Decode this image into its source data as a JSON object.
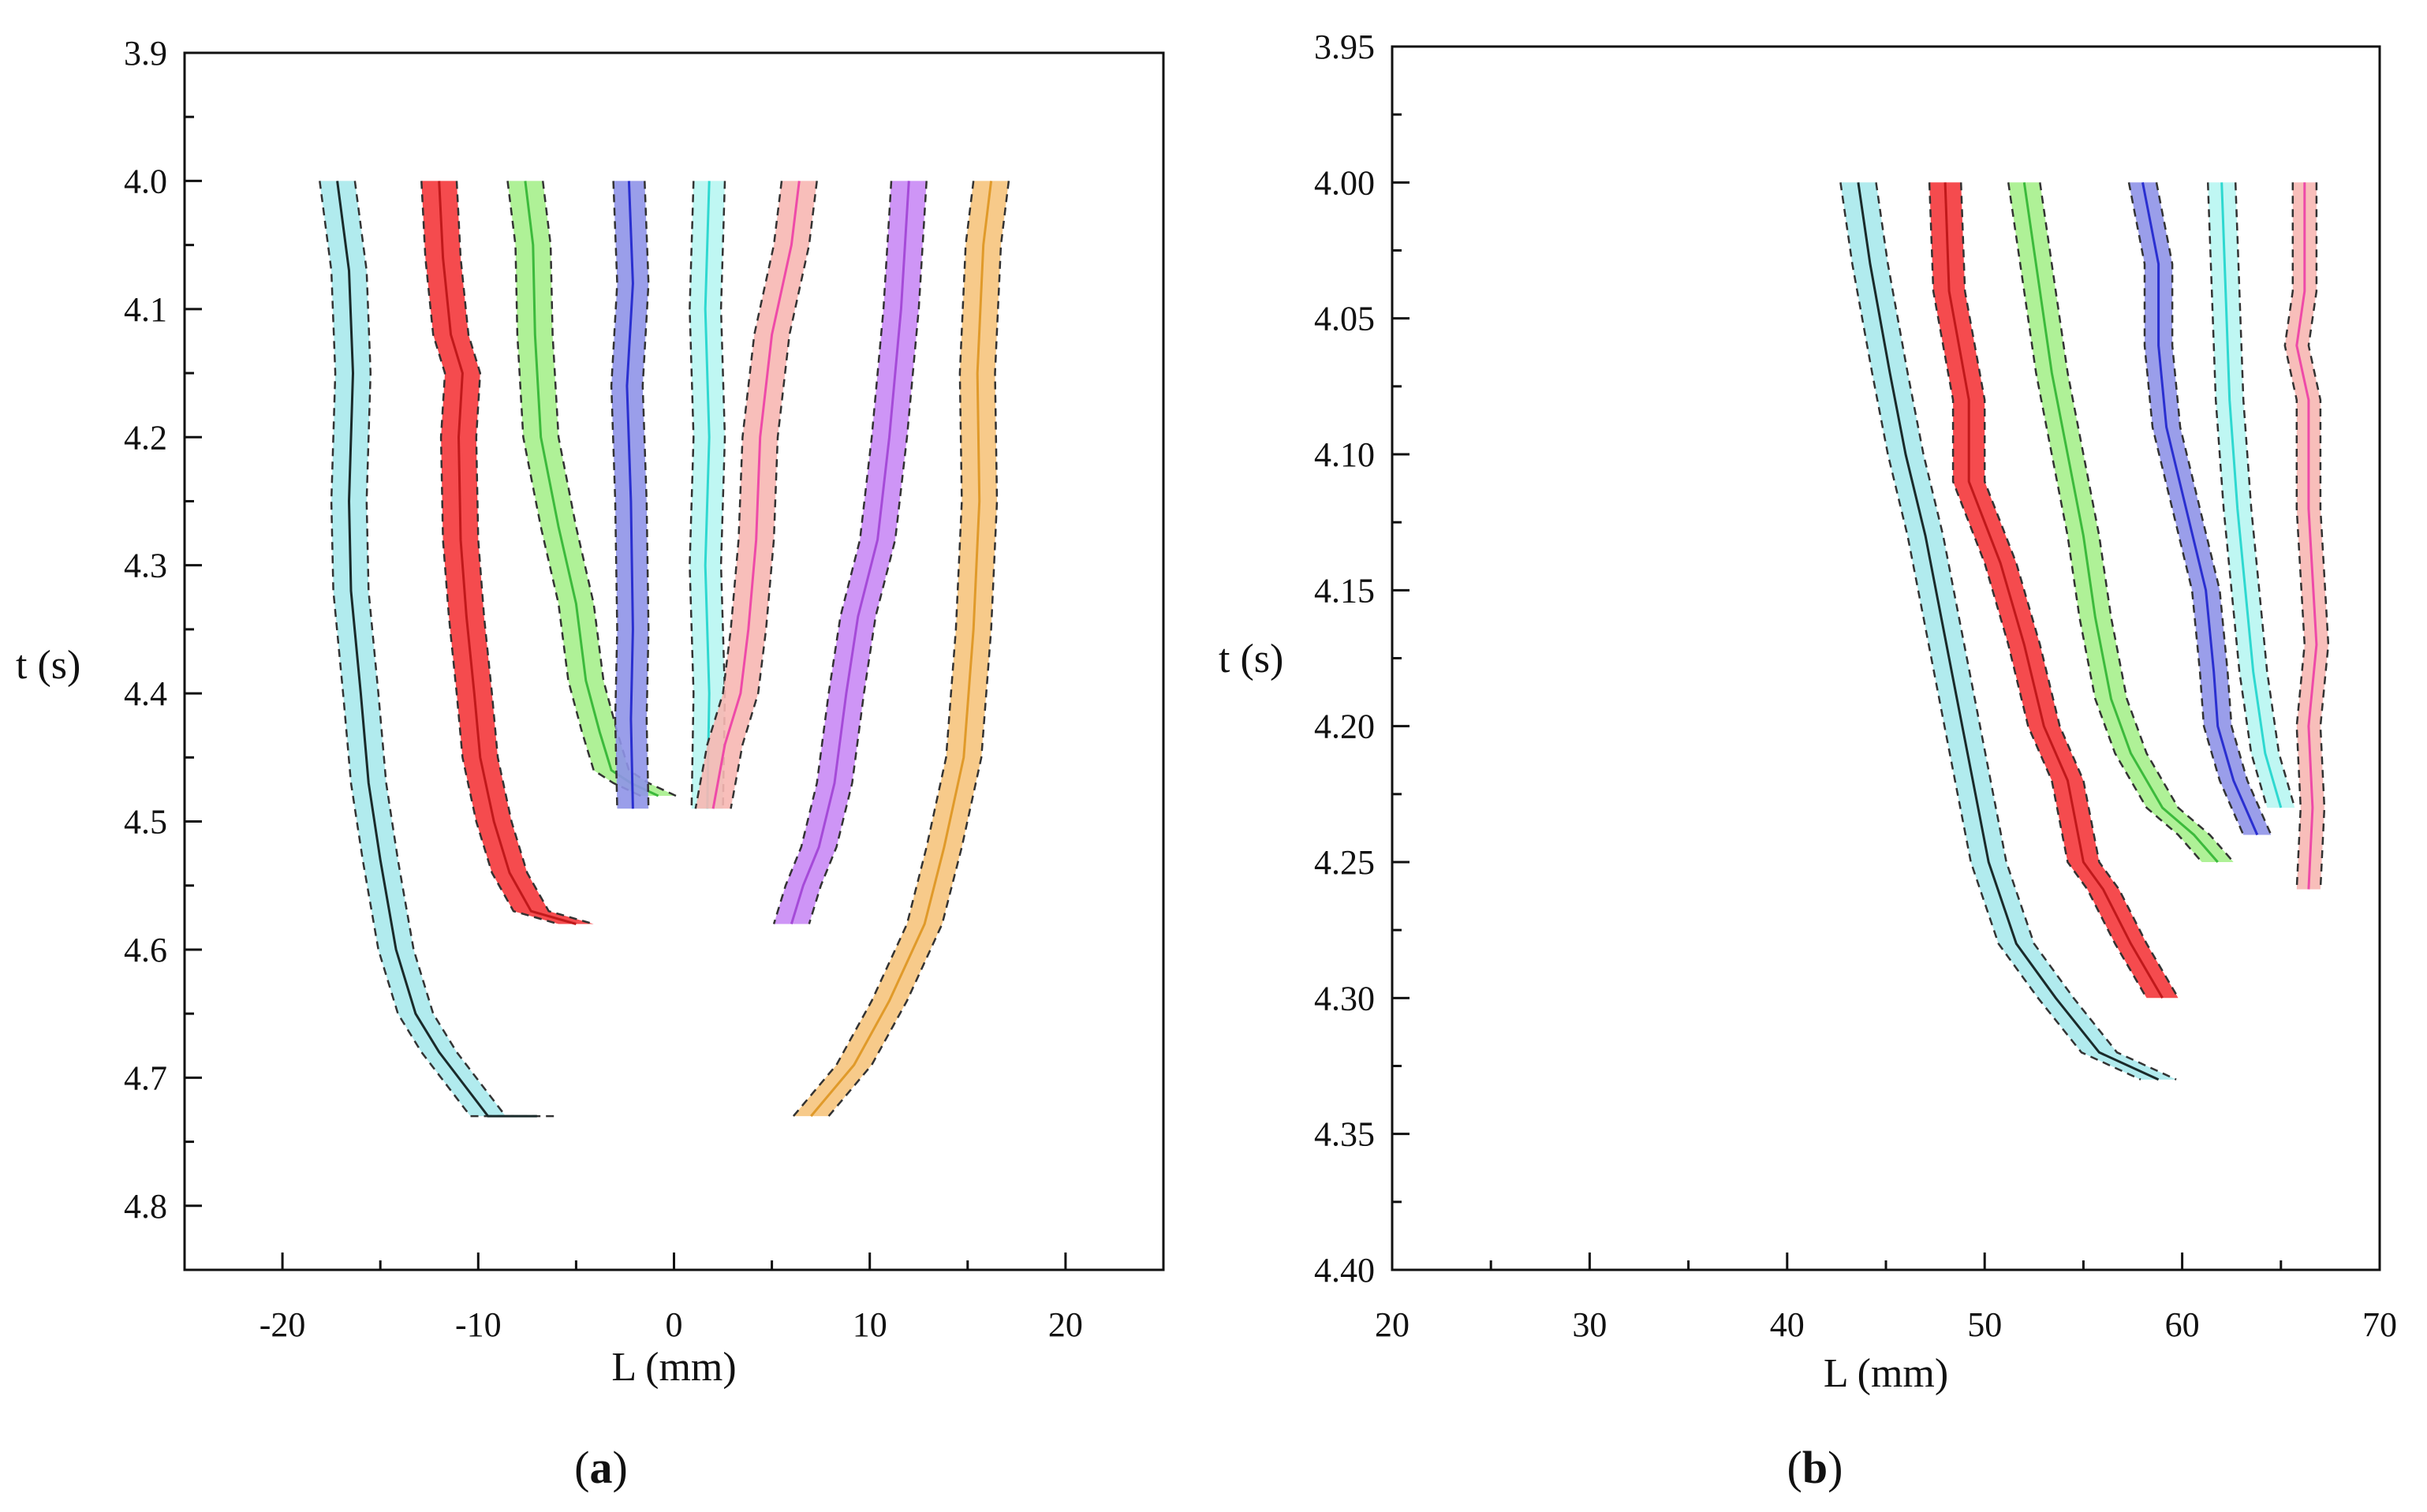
{
  "chart_data": [
    {
      "panel_label": {
        "open": "(",
        "letter": "a",
        "close": ")"
      },
      "type": "line",
      "xlabel": "L (mm)",
      "ylabel": "t (s)",
      "xlim": [
        -25,
        25
      ],
      "ylim": [
        3.9,
        4.85
      ],
      "y_inverted": true,
      "xticks": [
        -20,
        -10,
        0,
        10,
        20
      ],
      "xtick_labels": [
        "-20",
        "-10",
        "0",
        "10",
        "20"
      ],
      "yticks": [
        3.9,
        4.0,
        4.1,
        4.2,
        4.3,
        4.4,
        4.5,
        4.6,
        4.7,
        4.8
      ],
      "ytick_labels": [
        "3.9",
        "4.0",
        "4.1",
        "4.2",
        "4.3",
        "4.4",
        "4.5",
        "4.6",
        "4.7",
        "4.8"
      ],
      "grid": false,
      "series": [
        {
          "color": "#a8e9ec",
          "center_color": "#1a2a2a",
          "band_half_width": 0.9,
          "points": [
            [
              -17.2,
              4.0
            ],
            [
              -16.6,
              4.07
            ],
            [
              -16.4,
              4.15
            ],
            [
              -16.6,
              4.25
            ],
            [
              -16.5,
              4.32
            ],
            [
              -16.0,
              4.4
            ],
            [
              -15.6,
              4.47
            ],
            [
              -15.0,
              4.53
            ],
            [
              -14.2,
              4.6
            ],
            [
              -13.2,
              4.65
            ],
            [
              -12.0,
              4.68
            ],
            [
              -10.5,
              4.71
            ],
            [
              -9.5,
              4.73
            ],
            [
              -7.0,
              4.73
            ]
          ]
        },
        {
          "color": "#f4373b",
          "center_color": "#c0191b",
          "band_half_width": 0.9,
          "points": [
            [
              -12.0,
              4.0
            ],
            [
              -11.8,
              4.06
            ],
            [
              -11.4,
              4.12
            ],
            [
              -10.8,
              4.15
            ],
            [
              -11.0,
              4.2
            ],
            [
              -10.9,
              4.28
            ],
            [
              -10.6,
              4.34
            ],
            [
              -10.2,
              4.4
            ],
            [
              -9.9,
              4.45
            ],
            [
              -9.2,
              4.5
            ],
            [
              -8.4,
              4.54
            ],
            [
              -7.3,
              4.57
            ],
            [
              -5.0,
              4.58
            ]
          ]
        },
        {
          "color": "#a6f08c",
          "center_color": "#3cba3c",
          "band_half_width": 0.9,
          "points": [
            [
              -7.6,
              4.0
            ],
            [
              -7.2,
              4.05
            ],
            [
              -7.1,
              4.12
            ],
            [
              -6.8,
              4.2
            ],
            [
              -5.9,
              4.27
            ],
            [
              -5.0,
              4.33
            ],
            [
              -4.5,
              4.39
            ],
            [
              -3.8,
              4.43
            ],
            [
              -3.2,
              4.46
            ],
            [
              -2.2,
              4.47
            ],
            [
              -0.8,
              4.48
            ]
          ]
        },
        {
          "color": "#8f94e8",
          "center_color": "#2a2fd0",
          "band_half_width": 0.8,
          "points": [
            [
              -2.3,
              4.0
            ],
            [
              -2.1,
              4.08
            ],
            [
              -2.4,
              4.16
            ],
            [
              -2.2,
              4.25
            ],
            [
              -2.1,
              4.35
            ],
            [
              -2.2,
              4.42
            ],
            [
              -2.1,
              4.49
            ]
          ]
        },
        {
          "color": "#b8f6f2",
          "center_color": "#2ed8d0",
          "band_half_width": 0.8,
          "points": [
            [
              1.8,
              4.0
            ],
            [
              1.6,
              4.1
            ],
            [
              1.8,
              4.2
            ],
            [
              1.6,
              4.3
            ],
            [
              1.8,
              4.4
            ],
            [
              1.7,
              4.49
            ]
          ]
        },
        {
          "color": "#f7b7b2",
          "center_color": "#ee4aa8",
          "band_half_width": 0.9,
          "points": [
            [
              6.4,
              4.0
            ],
            [
              6.0,
              4.05
            ],
            [
              5.0,
              4.12
            ],
            [
              4.4,
              4.2
            ],
            [
              4.2,
              4.28
            ],
            [
              3.8,
              4.35
            ],
            [
              3.4,
              4.4
            ],
            [
              2.6,
              4.44
            ],
            [
              2.0,
              4.49
            ]
          ]
        },
        {
          "color": "#c989f5",
          "center_color": "#a54ad8",
          "band_half_width": 0.9,
          "points": [
            [
              12.0,
              4.0
            ],
            [
              11.6,
              4.1
            ],
            [
              11.0,
              4.2
            ],
            [
              10.4,
              4.28
            ],
            [
              9.4,
              4.34
            ],
            [
              8.8,
              4.4
            ],
            [
              8.2,
              4.47
            ],
            [
              7.4,
              4.52
            ],
            [
              6.6,
              4.55
            ],
            [
              6.0,
              4.58
            ]
          ]
        },
        {
          "color": "#f6c47d",
          "center_color": "#e09a2a",
          "band_half_width": 0.9,
          "points": [
            [
              16.2,
              4.0
            ],
            [
              15.8,
              4.05
            ],
            [
              15.5,
              4.15
            ],
            [
              15.6,
              4.25
            ],
            [
              15.3,
              4.35
            ],
            [
              14.8,
              4.45
            ],
            [
              13.8,
              4.52
            ],
            [
              12.8,
              4.58
            ],
            [
              11.0,
              4.64
            ],
            [
              9.2,
              4.69
            ],
            [
              7.0,
              4.73
            ]
          ]
        }
      ]
    },
    {
      "panel_label": {
        "open": "(",
        "letter": "b",
        "close": ")"
      },
      "type": "line",
      "xlabel": "L (mm)",
      "ylabel": "t (s)",
      "xlim": [
        20,
        70
      ],
      "ylim": [
        3.95,
        4.4
      ],
      "y_inverted": true,
      "xticks": [
        20,
        30,
        40,
        50,
        60,
        70
      ],
      "xtick_labels": [
        "20",
        "30",
        "40",
        "50",
        "60",
        "70"
      ],
      "yticks": [
        3.95,
        4.0,
        4.05,
        4.1,
        4.15,
        4.2,
        4.25,
        4.3,
        4.35,
        4.4
      ],
      "ytick_labels": [
        "3.95",
        "4.00",
        "4.05",
        "4.10",
        "4.15",
        "4.20",
        "4.25",
        "4.30",
        "4.35",
        "4.40"
      ],
      "grid": false,
      "series": [
        {
          "color": "#a8e9ec",
          "center_color": "#1a2a2a",
          "band_half_width": 0.9,
          "points": [
            [
              43.6,
              4.0
            ],
            [
              44.2,
              4.03
            ],
            [
              45.2,
              4.07
            ],
            [
              46.0,
              4.1
            ],
            [
              47.0,
              4.13
            ],
            [
              47.8,
              4.16
            ],
            [
              48.6,
              4.19
            ],
            [
              49.4,
              4.22
            ],
            [
              50.2,
              4.25
            ],
            [
              51.6,
              4.28
            ],
            [
              53.6,
              4.3
            ],
            [
              55.8,
              4.32
            ],
            [
              58.8,
              4.33
            ]
          ]
        },
        {
          "color": "#f4373b",
          "center_color": "#c0191b",
          "band_half_width": 0.8,
          "points": [
            [
              48.0,
              4.0
            ],
            [
              48.2,
              4.04
            ],
            [
              49.2,
              4.08
            ],
            [
              49.2,
              4.11
            ],
            [
              50.8,
              4.14
            ],
            [
              52.0,
              4.17
            ],
            [
              53.0,
              4.2
            ],
            [
              54.2,
              4.22
            ],
            [
              55.0,
              4.25
            ],
            [
              56.0,
              4.26
            ],
            [
              57.4,
              4.28
            ],
            [
              59.0,
              4.3
            ]
          ]
        },
        {
          "color": "#a6f08c",
          "center_color": "#3cba3c",
          "band_half_width": 0.8,
          "points": [
            [
              52.0,
              4.0
            ],
            [
              52.8,
              4.04
            ],
            [
              53.4,
              4.07
            ],
            [
              54.2,
              4.1
            ],
            [
              55.0,
              4.13
            ],
            [
              55.6,
              4.16
            ],
            [
              56.4,
              4.19
            ],
            [
              57.4,
              4.21
            ],
            [
              59.0,
              4.23
            ],
            [
              60.6,
              4.24
            ],
            [
              61.8,
              4.25
            ]
          ]
        },
        {
          "color": "#8f94e8",
          "center_color": "#2a2fd0",
          "band_half_width": 0.7,
          "points": [
            [
              58.0,
              4.0
            ],
            [
              58.8,
              4.03
            ],
            [
              58.8,
              4.06
            ],
            [
              59.2,
              4.09
            ],
            [
              60.2,
              4.12
            ],
            [
              61.2,
              4.15
            ],
            [
              61.6,
              4.18
            ],
            [
              61.8,
              4.2
            ],
            [
              62.6,
              4.22
            ],
            [
              63.8,
              4.24
            ]
          ]
        },
        {
          "color": "#b8f6f2",
          "center_color": "#2ed8d0",
          "band_half_width": 0.7,
          "points": [
            [
              62.0,
              4.0
            ],
            [
              62.2,
              4.04
            ],
            [
              62.4,
              4.08
            ],
            [
              62.8,
              4.12
            ],
            [
              63.2,
              4.15
            ],
            [
              63.6,
              4.18
            ],
            [
              64.2,
              4.21
            ],
            [
              65.0,
              4.23
            ]
          ]
        },
        {
          "color": "#f7b7b2",
          "center_color": "#ee4aa8",
          "band_half_width": 0.6,
          "points": [
            [
              66.2,
              4.0
            ],
            [
              66.2,
              4.04
            ],
            [
              65.8,
              4.06
            ],
            [
              66.4,
              4.08
            ],
            [
              66.4,
              4.12
            ],
            [
              66.8,
              4.17
            ],
            [
              66.4,
              4.2
            ],
            [
              66.6,
              4.23
            ],
            [
              66.4,
              4.26
            ]
          ]
        }
      ]
    }
  ]
}
